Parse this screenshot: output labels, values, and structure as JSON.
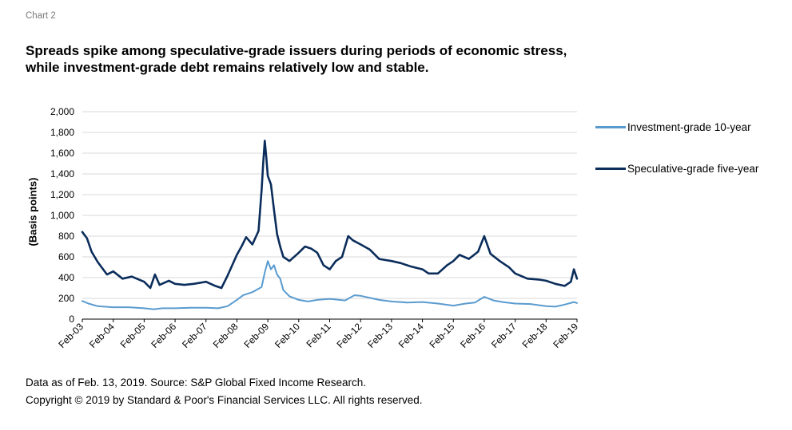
{
  "chart_label": "Chart 2",
  "title": "Spreads spike among speculative-grade issuers during periods of economic stress, while investment-grade debt remains relatively low and stable.",
  "footnote_source": "Data as of Feb. 13, 2019. Source: S&P Global Fixed Income Research.",
  "footnote_copyright": "Copyright © 2019 by Standard & Poor's Financial Services LLC. All rights reserved.",
  "colors": {
    "investment": "#5a9bcf",
    "speculative": "#0b2d5b",
    "grid": "#d9d9d9",
    "axis": "#000000"
  },
  "chart_data": {
    "type": "line",
    "ylabel": "(Basis points)",
    "xlabel": "",
    "ylim": [
      0,
      2000
    ],
    "yticks": [
      "0",
      "200",
      "400",
      "600",
      "800",
      "1,000",
      "1,200",
      "1,400",
      "1,600",
      "1,800",
      "2,000"
    ],
    "ytick_values": [
      0,
      200,
      400,
      600,
      800,
      1000,
      1200,
      1400,
      1600,
      1800,
      2000
    ],
    "xticks": [
      "Feb-03",
      "Feb-04",
      "Feb-05",
      "Feb-06",
      "Feb-07",
      "Feb-08",
      "Feb-09",
      "Feb-10",
      "Feb-11",
      "Feb-12",
      "Feb-13",
      "Feb-14",
      "Feb-15",
      "Feb-16",
      "Feb-17",
      "Feb-18",
      "Feb-19"
    ],
    "xlim": [
      2003.0,
      2019.0
    ],
    "grid": true,
    "legend_position": "right",
    "series": [
      {
        "name": "Investment-grade 10-year",
        "x": [
          2003.0,
          2003.2,
          2003.5,
          2004.0,
          2004.5,
          2005.0,
          2005.3,
          2005.6,
          2006.0,
          2006.5,
          2007.0,
          2007.4,
          2007.7,
          2008.0,
          2008.2,
          2008.5,
          2008.8,
          2008.9,
          2009.0,
          2009.1,
          2009.2,
          2009.3,
          2009.4,
          2009.5,
          2009.7,
          2010.0,
          2010.3,
          2010.6,
          2011.0,
          2011.5,
          2011.8,
          2012.0,
          2012.3,
          2012.6,
          2013.0,
          2013.5,
          2014.0,
          2014.5,
          2015.0,
          2015.4,
          2015.7,
          2016.0,
          2016.3,
          2016.6,
          2017.0,
          2017.5,
          2018.0,
          2018.3,
          2018.6,
          2018.9,
          2019.0
        ],
        "values": [
          175,
          150,
          125,
          115,
          115,
          105,
          95,
          105,
          105,
          110,
          110,
          105,
          125,
          185,
          230,
          260,
          310,
          450,
          560,
          480,
          520,
          430,
          390,
          280,
          220,
          185,
          170,
          185,
          195,
          180,
          230,
          225,
          205,
          185,
          170,
          160,
          165,
          150,
          130,
          150,
          160,
          215,
          180,
          165,
          150,
          145,
          125,
          120,
          140,
          165,
          155
        ]
      },
      {
        "name": "Speculative-grade five-year",
        "x": [
          2003.0,
          2003.15,
          2003.3,
          2003.5,
          2003.8,
          2004.0,
          2004.3,
          2004.6,
          2005.0,
          2005.2,
          2005.35,
          2005.5,
          2005.8,
          2006.0,
          2006.3,
          2006.6,
          2007.0,
          2007.3,
          2007.5,
          2007.7,
          2008.0,
          2008.15,
          2008.3,
          2008.5,
          2008.7,
          2008.8,
          2008.85,
          2008.9,
          2008.95,
          2009.0,
          2009.1,
          2009.2,
          2009.3,
          2009.4,
          2009.5,
          2009.7,
          2010.0,
          2010.2,
          2010.4,
          2010.6,
          2010.8,
          2011.0,
          2011.2,
          2011.4,
          2011.6,
          2011.75,
          2012.0,
          2012.3,
          2012.6,
          2013.0,
          2013.3,
          2013.6,
          2014.0,
          2014.2,
          2014.5,
          2014.8,
          2015.0,
          2015.2,
          2015.5,
          2015.8,
          2016.0,
          2016.2,
          2016.5,
          2016.8,
          2017.0,
          2017.4,
          2017.8,
          2018.0,
          2018.3,
          2018.6,
          2018.8,
          2018.9,
          2019.0
        ],
        "values": [
          840,
          780,
          650,
          550,
          430,
          460,
          390,
          410,
          360,
          300,
          430,
          330,
          370,
          340,
          330,
          340,
          360,
          320,
          300,
          420,
          620,
          700,
          790,
          720,
          850,
          1250,
          1500,
          1720,
          1560,
          1380,
          1300,
          1050,
          820,
          700,
          600,
          560,
          640,
          700,
          680,
          640,
          520,
          480,
          560,
          600,
          800,
          760,
          720,
          670,
          580,
          560,
          540,
          510,
          480,
          440,
          440,
          520,
          560,
          620,
          580,
          650,
          800,
          630,
          560,
          500,
          440,
          390,
          380,
          370,
          340,
          320,
          360,
          480,
          390
        ]
      }
    ]
  }
}
